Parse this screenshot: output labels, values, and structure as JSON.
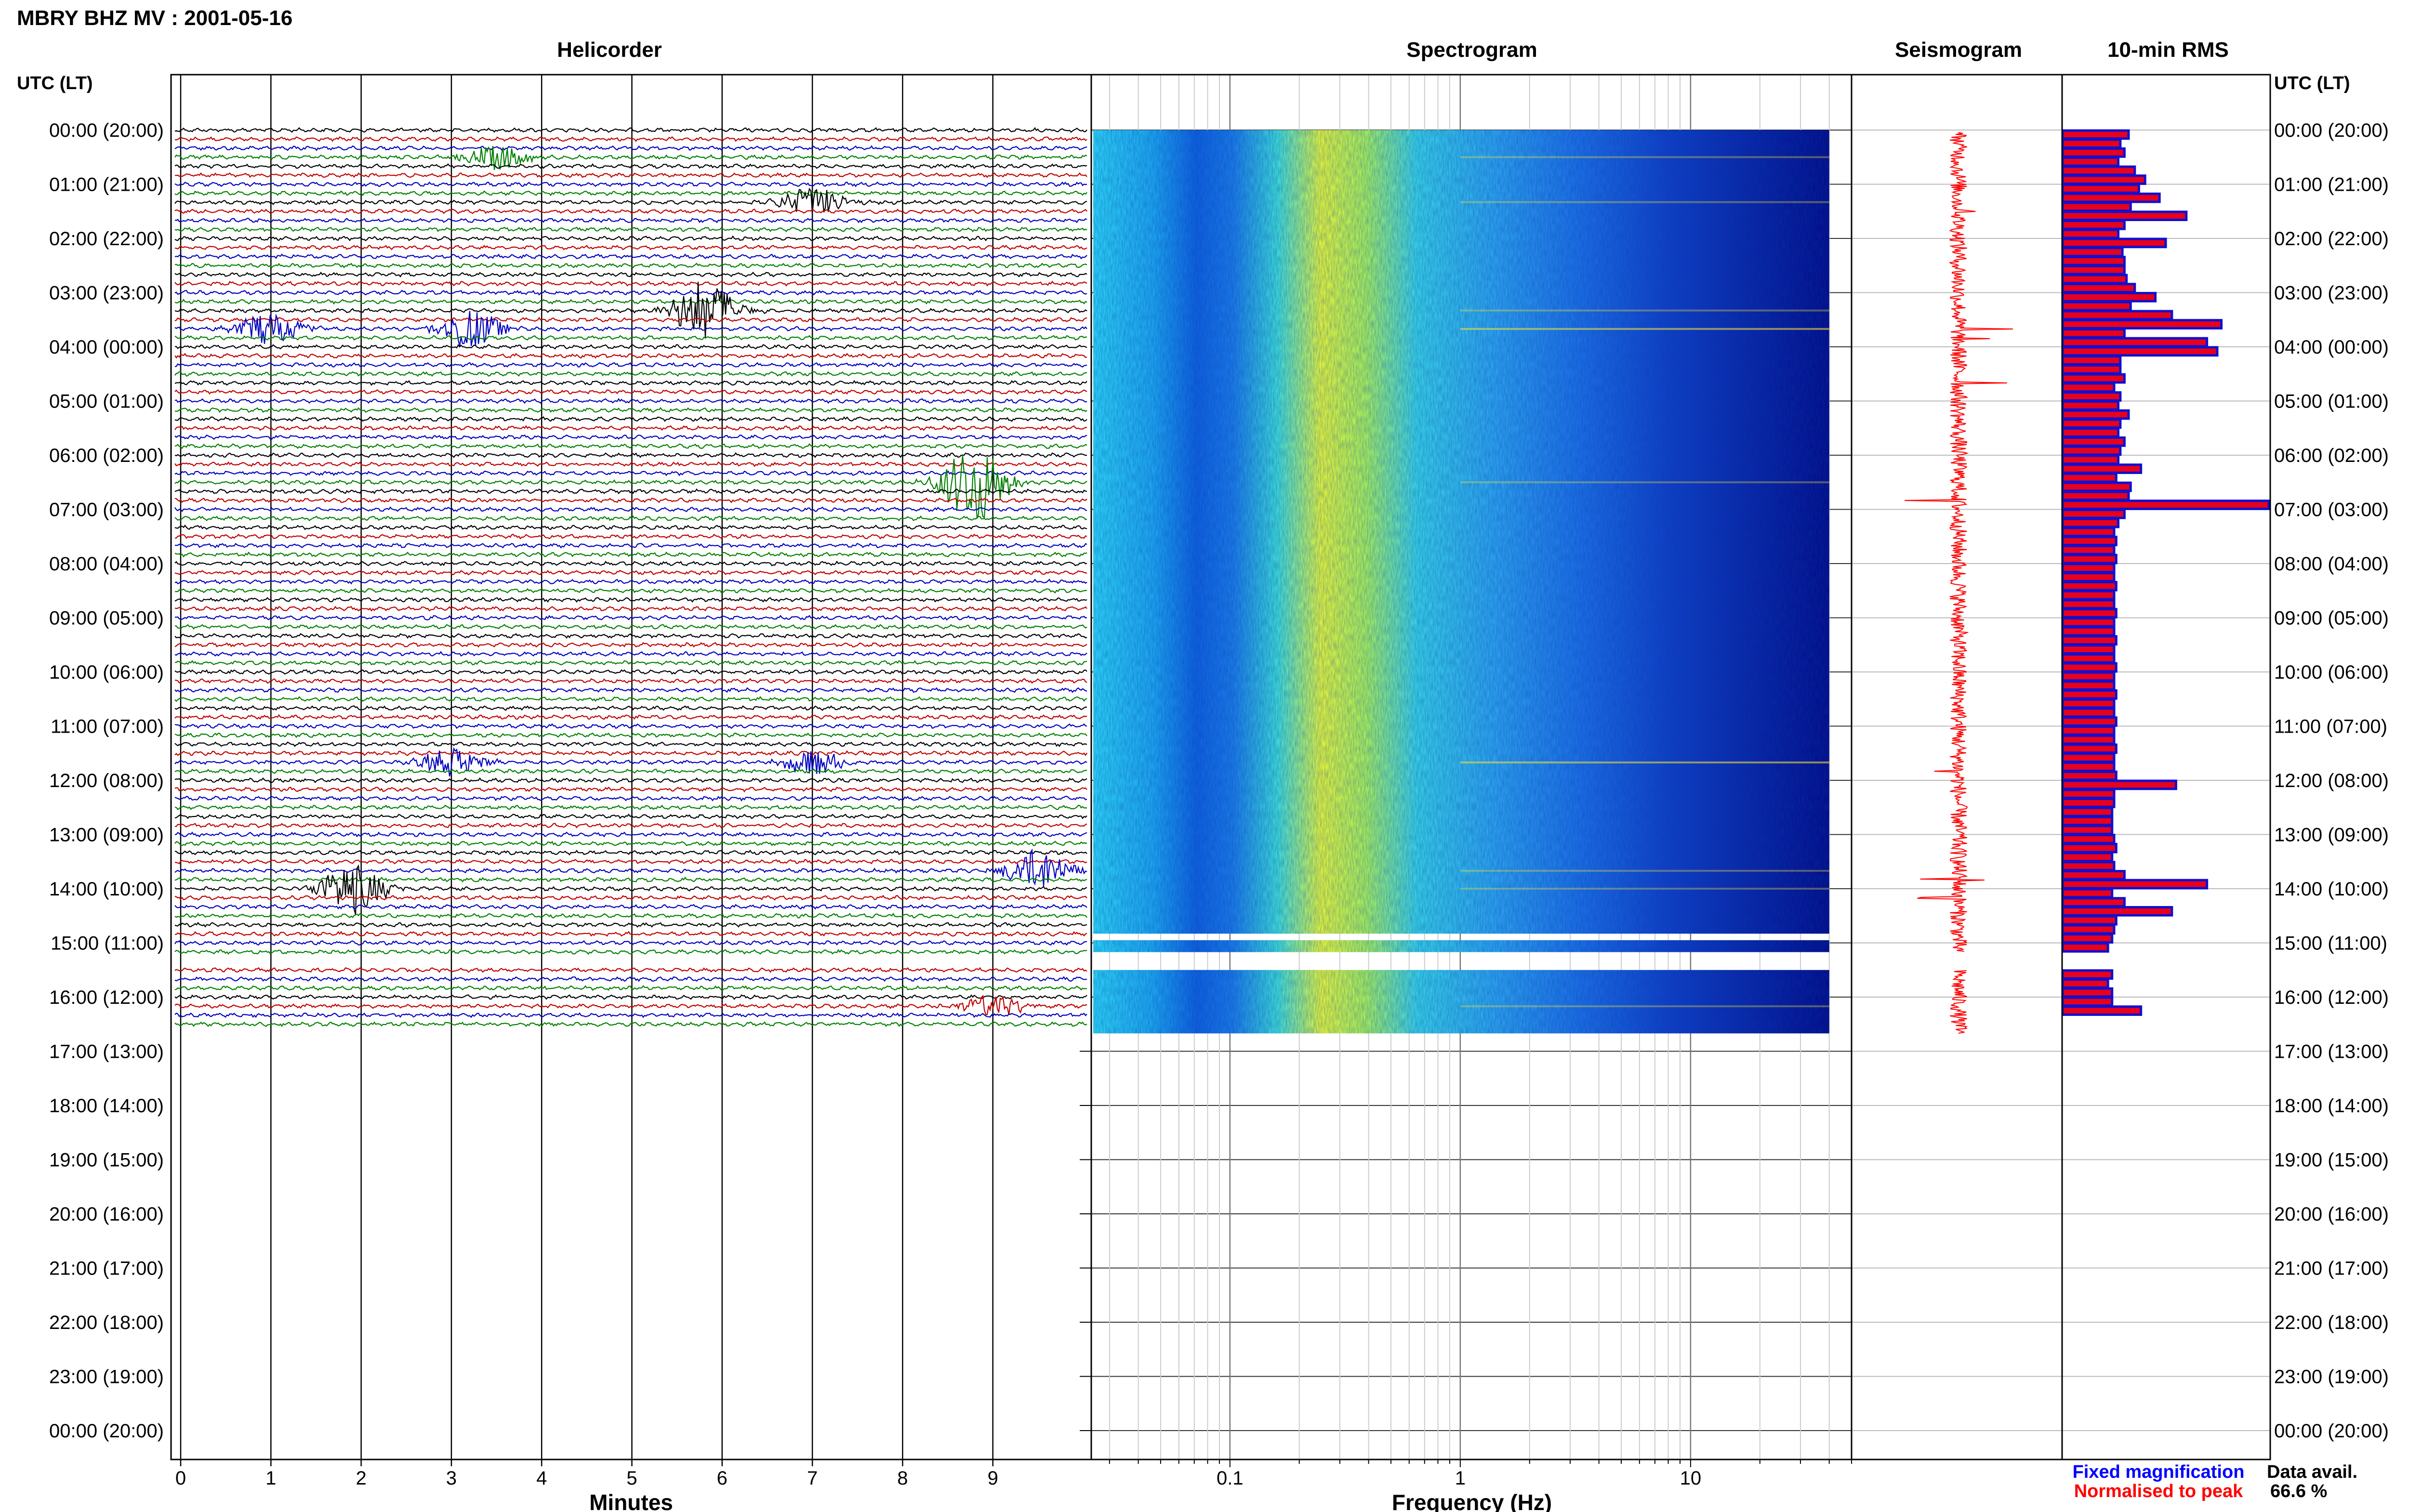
{
  "figure": {
    "title": "MBRY BHZ MV : 2001-05-16",
    "left_axis_header": "UTC (LT)",
    "right_axis_header": "UTC (LT)",
    "time_labels": [
      "00:00 (20:00)",
      "01:00 (21:00)",
      "02:00 (22:00)",
      "03:00 (23:00)",
      "04:00 (00:00)",
      "05:00 (01:00)",
      "06:00 (02:00)",
      "07:00 (03:00)",
      "08:00 (04:00)",
      "09:00 (05:00)",
      "10:00 (06:00)",
      "11:00 (07:00)",
      "12:00 (08:00)",
      "13:00 (09:00)",
      "14:00 (10:00)",
      "15:00 (11:00)",
      "16:00 (12:00)",
      "17:00 (13:00)",
      "18:00 (14:00)",
      "19:00 (15:00)",
      "20:00 (16:00)",
      "21:00 (17:00)",
      "22:00 (18:00)",
      "23:00 (19:00)",
      "00:00 (20:00)"
    ],
    "legend": {
      "fixed": "Fixed magnification",
      "normalised": "Normalised to peak",
      "fixed_color": "#0000ff",
      "normalised_color": "#ff0000"
    },
    "data_avail_label": "Data avail.",
    "data_avail_value": "66.6 %",
    "trace_colors": [
      "#000000",
      "#c00000",
      "#0000c0",
      "#008000"
    ],
    "rms_fill_color": "#e8001c",
    "rms_edge_color": "#1010d0"
  },
  "chart_data": [
    {
      "type": "line",
      "title": "Helicorder",
      "xlabel": "Minutes",
      "xlim": [
        0,
        10
      ],
      "x_ticks": [
        0,
        1,
        2,
        3,
        4,
        5,
        6,
        7,
        8,
        9
      ],
      "x_tick_labels": [
        "0",
        "1",
        "2",
        "3",
        "4",
        "5",
        "6",
        "7",
        "8",
        "9"
      ],
      "rows_per_hour": 6,
      "data_hours": [
        0,
        16.67
      ],
      "gap_hours": [
        15.17,
        15.5
      ],
      "events": [
        {
          "hour": 3.33,
          "minute": 5.8,
          "amp": 1.8
        },
        {
          "hour": 3.67,
          "minute": 3.2,
          "amp": 1.2
        },
        {
          "hour": 3.67,
          "minute": 1.0,
          "amp": 1.0
        },
        {
          "hour": 6.5,
          "minute": 8.8,
          "amp": 2.5
        },
        {
          "hour": 13.67,
          "minute": 9.5,
          "amp": 1.3
        },
        {
          "hour": 14.0,
          "minute": 1.9,
          "amp": 1.6
        },
        {
          "hour": 1.33,
          "minute": 7.0,
          "amp": 0.9
        },
        {
          "hour": 0.5,
          "minute": 3.5,
          "amp": 0.8
        },
        {
          "hour": 11.67,
          "minute": 3.0,
          "amp": 0.8
        },
        {
          "hour": 11.67,
          "minute": 7.0,
          "amp": 0.8
        },
        {
          "hour": 16.17,
          "minute": 9.0,
          "amp": 0.7
        }
      ]
    },
    {
      "type": "heatmap",
      "title": "Spectrogram",
      "xlabel": "Frequency (Hz)",
      "x_scale": "log",
      "xlim": [
        0.025,
        50
      ],
      "x_ticks": [
        0.1,
        1,
        10
      ],
      "x_tick_labels": [
        "0.1",
        "1",
        "10"
      ],
      "data_xlim": [
        0.025,
        40
      ],
      "peak_frequency_hz": 0.25,
      "data_hours": [
        0,
        16.67
      ],
      "gap_hours": [
        [
          14.83,
          14.95
        ],
        [
          15.17,
          15.5
        ]
      ]
    },
    {
      "type": "line",
      "title": "Seismogram",
      "data_hours": [
        0,
        16.67
      ],
      "gap_hours": [
        15.17,
        15.5
      ],
      "spikes": [
        {
          "hour": 1.5,
          "amp": 0.25
        },
        {
          "hour": 3.67,
          "amp": 0.55
        },
        {
          "hour": 3.85,
          "amp": 0.3
        },
        {
          "hour": 4.67,
          "amp": 0.6
        },
        {
          "hour": 6.83,
          "amp": 0.65
        },
        {
          "hour": 11.83,
          "amp": 0.25
        },
        {
          "hour": 13.83,
          "amp": 0.4
        },
        {
          "hour": 14.17,
          "amp": 0.5
        }
      ]
    },
    {
      "type": "bar",
      "title": "10-min RMS",
      "orientation": "horizontal",
      "x": [
        0,
        0.167,
        0.333,
        0.5,
        0.667,
        0.833,
        1.0,
        1.167,
        1.333,
        1.5,
        1.667,
        1.833,
        2.0,
        2.167,
        2.333,
        2.5,
        2.667,
        2.833,
        3.0,
        3.167,
        3.333,
        3.5,
        3.667,
        3.833,
        4.0,
        4.167,
        4.333,
        4.5,
        4.667,
        4.833,
        5.0,
        5.167,
        5.333,
        5.5,
        5.667,
        5.833,
        6.0,
        6.167,
        6.333,
        6.5,
        6.667,
        6.833,
        7.0,
        7.167,
        7.333,
        7.5,
        7.667,
        7.833,
        8.0,
        8.167,
        8.333,
        8.5,
        8.667,
        8.833,
        9.0,
        9.167,
        9.333,
        9.5,
        9.667,
        9.833,
        10.0,
        10.167,
        10.333,
        10.5,
        10.667,
        10.833,
        11.0,
        11.167,
        11.333,
        11.5,
        11.667,
        11.833,
        12.0,
        12.167,
        12.333,
        12.5,
        12.667,
        12.833,
        13.0,
        13.167,
        13.333,
        13.5,
        13.667,
        13.833,
        14.0,
        14.167,
        14.333,
        14.5,
        14.667,
        14.833,
        15.0,
        15.5,
        15.667,
        15.833,
        16.0,
        16.167
      ],
      "values": [
        0.32,
        0.28,
        0.3,
        0.27,
        0.35,
        0.4,
        0.37,
        0.47,
        0.33,
        0.6,
        0.3,
        0.27,
        0.5,
        0.29,
        0.3,
        0.3,
        0.31,
        0.35,
        0.45,
        0.33,
        0.53,
        0.77,
        0.3,
        0.7,
        0.75,
        0.28,
        0.28,
        0.3,
        0.25,
        0.28,
        0.27,
        0.32,
        0.28,
        0.27,
        0.3,
        0.28,
        0.27,
        0.38,
        0.26,
        0.33,
        0.32,
        1.0,
        0.3,
        0.27,
        0.25,
        0.26,
        0.25,
        0.26,
        0.25,
        0.25,
        0.26,
        0.25,
        0.25,
        0.26,
        0.25,
        0.25,
        0.26,
        0.25,
        0.25,
        0.26,
        0.25,
        0.25,
        0.26,
        0.25,
        0.25,
        0.26,
        0.25,
        0.25,
        0.26,
        0.25,
        0.25,
        0.26,
        0.55,
        0.25,
        0.25,
        0.24,
        0.24,
        0.24,
        0.25,
        0.26,
        0.24,
        0.25,
        0.3,
        0.7,
        0.24,
        0.3,
        0.53,
        0.26,
        0.25,
        0.24,
        0.22,
        0.24,
        0.22,
        0.24,
        0.24,
        0.38
      ]
    }
  ]
}
